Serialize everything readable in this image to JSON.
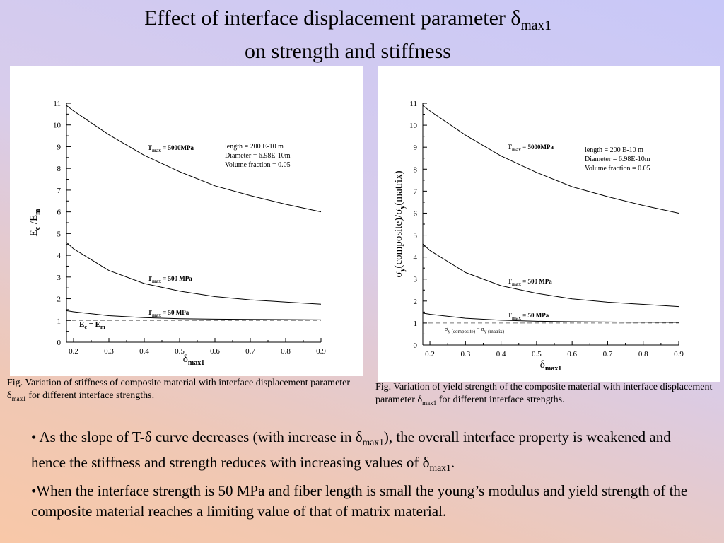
{
  "slide": {
    "title_line1": "Effect of interface displacement parameter δ",
    "title_sub": "max1",
    "title_line2": "on strength and stiffness",
    "caption_left": {
      "a": "Fig.  Variation of stiffness of composite material with interface displacement parameter δ",
      "sub": "max1",
      "b": " for different interface strengths."
    },
    "caption_right": {
      "a": "Fig.  Variation of yield strength of the composite material with interface displacement parameter δ",
      "sub": "max1",
      "b": " for different interface strengths."
    },
    "bullet1": {
      "a": "• As the slope of T-δ  curve decreases (with increase in δ",
      "sub1": "max1",
      "b": "), the overall interface property is weakened and hence the stiffness and strength reduces with increasing values of δ",
      "sub2": "max1",
      "c": "."
    },
    "bullet2": "•When the interface strength is 50 MPa and fiber length is small the young’s modulus and yield strength of the composite material reaches a limiting value of that of matrix material."
  },
  "chart_data": [
    {
      "type": "line",
      "xlabel": "δ",
      "xlabel_sub": "max1",
      "ylabel": "E",
      "ylabel_sub": "c",
      "ylabel_mid": " /E",
      "ylabel_sub2": "m",
      "xlim": [
        0.18,
        0.9
      ],
      "ylim": [
        0,
        11
      ],
      "xticks": [
        "0.2",
        "0.3",
        "0.4",
        "0.5",
        "0.6",
        "0.7",
        "0.8",
        "0.9"
      ],
      "yticks": [
        "0",
        "1",
        "2",
        "3",
        "4",
        "5",
        "6",
        "7",
        "8",
        "9",
        "10",
        "11"
      ],
      "info": [
        "length = 200 E-10 m",
        "Diameter = 6.98E-10m",
        "Volume fraction = 0.05"
      ],
      "reference_label": "E",
      "reference_sub": "c",
      "reference_mid": " = E",
      "reference_sub2": "m",
      "reference_value": 1.0,
      "series": [
        {
          "name": "T",
          "name_sub": "max",
          "name_rest": "  = 5000MPa",
          "x": [
            0.18,
            0.2,
            0.3,
            0.4,
            0.5,
            0.6,
            0.7,
            0.8,
            0.9
          ],
          "y": [
            10.9,
            10.65,
            9.55,
            8.6,
            7.85,
            7.2,
            6.75,
            6.35,
            6.0
          ]
        },
        {
          "name": "T",
          "name_sub": "max",
          "name_rest": "  = 500 MPa",
          "x": [
            0.18,
            0.2,
            0.3,
            0.4,
            0.5,
            0.6,
            0.7,
            0.8,
            0.9
          ],
          "y": [
            4.6,
            4.3,
            3.3,
            2.7,
            2.35,
            2.1,
            1.95,
            1.85,
            1.75
          ]
        },
        {
          "name": "T",
          "name_sub": "max",
          "name_rest": "  = 50 MPa",
          "x": [
            0.18,
            0.2,
            0.3,
            0.4,
            0.5,
            0.6,
            0.7,
            0.8,
            0.9
          ],
          "y": [
            1.45,
            1.4,
            1.22,
            1.13,
            1.08,
            1.06,
            1.05,
            1.04,
            1.03
          ]
        }
      ]
    },
    {
      "type": "line",
      "xlabel": "δ",
      "xlabel_sub": "max1",
      "ylabel": "σ",
      "ylabel_sub": "y",
      "ylabel_mid": "(composite)/σ",
      "ylabel_sub2": "y",
      "ylabel_end": "(matrix)",
      "xlim": [
        0.18,
        0.9
      ],
      "ylim": [
        0,
        11
      ],
      "xticks": [
        "0.2",
        "0.3",
        "0.4",
        "0.5",
        "0.6",
        "0.7",
        "0.8",
        "0.9"
      ],
      "yticks": [
        "0",
        "1",
        "2",
        "3",
        "4",
        "5",
        "6",
        "7",
        "8",
        "9",
        "10",
        "11"
      ],
      "info": [
        "length = 200 E-10 m",
        "Diameter = 6.98E-10m",
        "Volume fraction = 0.05"
      ],
      "reference_label": "σ",
      "reference_sub": "y (composite)",
      "reference_mid": "  = σ",
      "reference_sub2": "y (matrix)",
      "reference_value": 1.0,
      "series": [
        {
          "name": "T",
          "name_sub": "max",
          "name_rest": "  = 5000MPa",
          "x": [
            0.18,
            0.2,
            0.3,
            0.4,
            0.5,
            0.6,
            0.7,
            0.8,
            0.9
          ],
          "y": [
            10.9,
            10.65,
            9.55,
            8.6,
            7.85,
            7.2,
            6.75,
            6.35,
            6.0
          ]
        },
        {
          "name": "T",
          "name_sub": "max",
          "name_rest": "  = 500 MPa",
          "x": [
            0.18,
            0.2,
            0.3,
            0.4,
            0.5,
            0.6,
            0.7,
            0.8,
            0.9
          ],
          "y": [
            4.6,
            4.3,
            3.3,
            2.7,
            2.35,
            2.1,
            1.95,
            1.85,
            1.75
          ]
        },
        {
          "name": "T",
          "name_sub": "max",
          "name_rest": "  = 50 MPa",
          "x": [
            0.18,
            0.2,
            0.3,
            0.4,
            0.5,
            0.6,
            0.7,
            0.8,
            0.9
          ],
          "y": [
            1.45,
            1.4,
            1.22,
            1.13,
            1.08,
            1.06,
            1.05,
            1.04,
            1.03
          ]
        }
      ]
    }
  ]
}
